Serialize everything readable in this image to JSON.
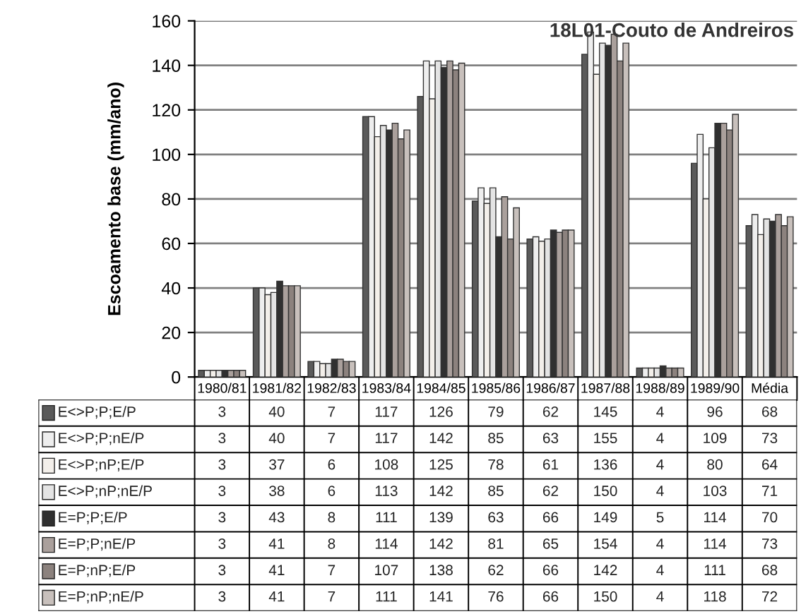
{
  "chart_data": {
    "type": "bar",
    "title": "18L01-Couto de Andreiros",
    "ylabel": "Escoamento base (mm/ano)",
    "categories": [
      "1980/81",
      "1981/82",
      "1982/83",
      "1983/84",
      "1984/85",
      "1985/86",
      "1986/87",
      "1987/88",
      "1988/89",
      "1989/90",
      "Média"
    ],
    "series": [
      {
        "name": "E<>P;P;E/P",
        "color": "#5a5a5a",
        "values": [
          3,
          40,
          7,
          117,
          126,
          79,
          62,
          145,
          4,
          96,
          68
        ]
      },
      {
        "name": "E<>P;P;nE/P",
        "color": "#eeeeee",
        "values": [
          3,
          40,
          7,
          117,
          142,
          85,
          63,
          155,
          4,
          109,
          73
        ]
      },
      {
        "name": "E<>P;nP;E/P",
        "color": "#f3efea",
        "values": [
          3,
          37,
          6,
          108,
          125,
          78,
          61,
          136,
          4,
          80,
          64
        ]
      },
      {
        "name": "E<>P;nP;nE/P",
        "color": "#e4e4e4",
        "values": [
          3,
          38,
          6,
          113,
          142,
          85,
          62,
          150,
          4,
          103,
          71
        ]
      },
      {
        "name": "E=P;P;E/P",
        "color": "#303030",
        "values": [
          3,
          43,
          8,
          111,
          139,
          63,
          66,
          149,
          5,
          114,
          70
        ]
      },
      {
        "name": "E=P;P;nE/P",
        "color": "#aaa09c",
        "values": [
          3,
          41,
          8,
          114,
          142,
          81,
          65,
          154,
          4,
          114,
          73
        ]
      },
      {
        "name": "E=P;nP;E/P",
        "color": "#8c827e",
        "values": [
          3,
          41,
          7,
          107,
          138,
          62,
          66,
          142,
          4,
          111,
          68
        ]
      },
      {
        "name": "E=P;nP;nE/P",
        "color": "#c8c0bc",
        "values": [
          3,
          41,
          7,
          111,
          141,
          76,
          66,
          150,
          4,
          118,
          72
        ]
      }
    ],
    "ylim": [
      0,
      160
    ],
    "yticks": [
      0,
      20,
      40,
      60,
      80,
      100,
      120,
      140,
      160
    ],
    "grid": "y",
    "legend": "bottom left",
    "data_labels": true
  }
}
